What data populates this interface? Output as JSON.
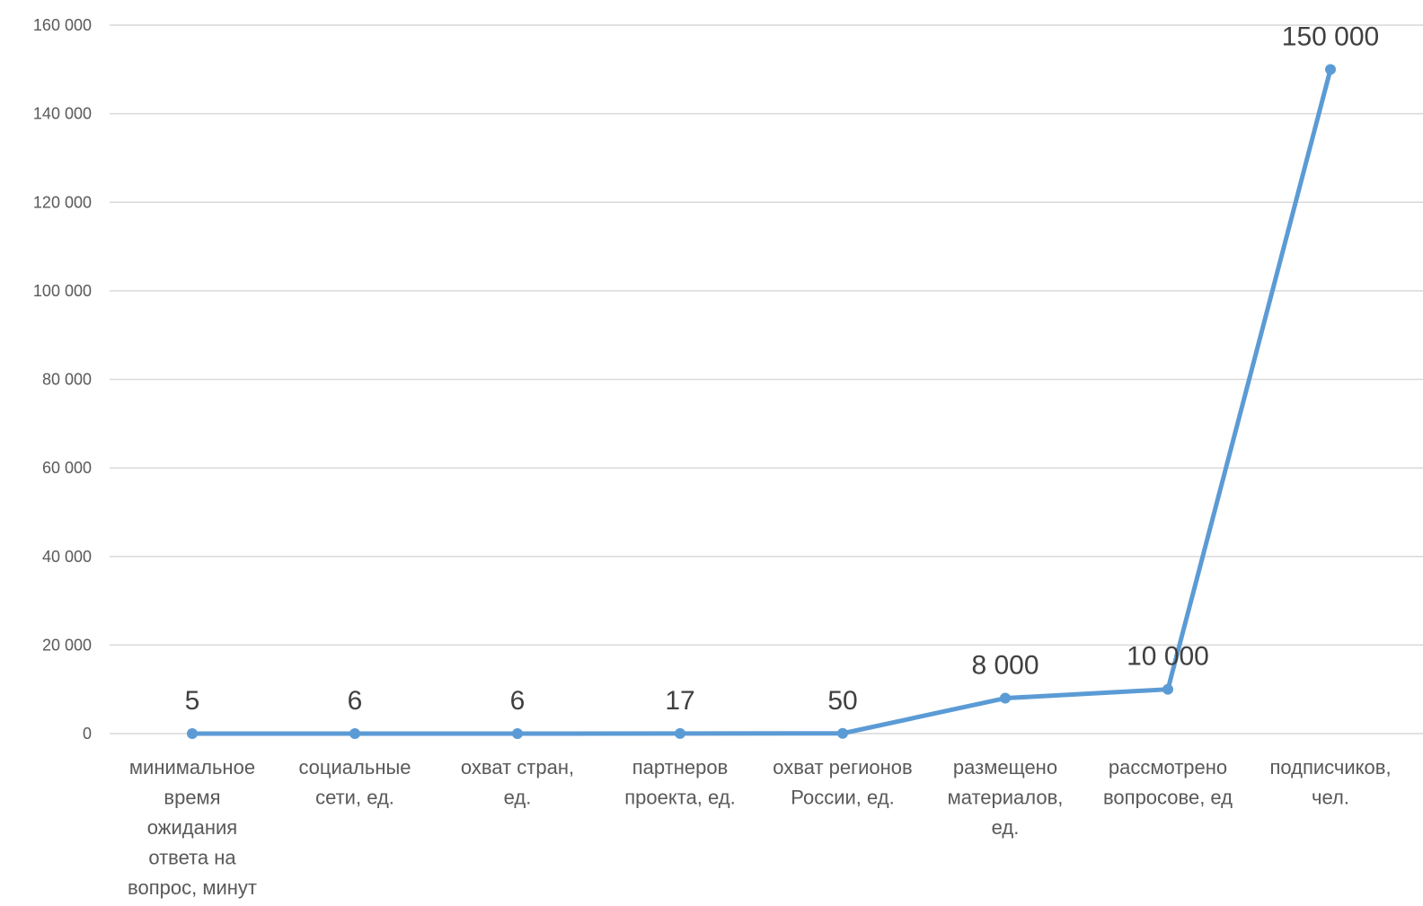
{
  "chart_data": {
    "type": "line",
    "title": "",
    "xlabel": "",
    "ylabel": "",
    "ylim": [
      0,
      160000
    ],
    "ytick_values": [
      0,
      20000,
      40000,
      60000,
      80000,
      100000,
      120000,
      140000,
      160000
    ],
    "ytick_labels": [
      "0",
      "20 000",
      "40 000",
      "60 000",
      "80 000",
      "100 000",
      "120 000",
      "140 000",
      "160 000"
    ],
    "grid": true,
    "legend": "none",
    "categories": [
      [
        "минимальное",
        "время",
        "ожидания",
        "ответа на",
        "вопрос, минут"
      ],
      [
        "социальные",
        "сети, ед."
      ],
      [
        "охват стран,",
        "ед."
      ],
      [
        "партнеров",
        "проекта, ед."
      ],
      [
        "охват регионов",
        "России, ед."
      ],
      [
        "размещено",
        "материалов,",
        "ед."
      ],
      [
        "рассмотрено",
        "вопросове, ед"
      ],
      [
        "подписчиков,",
        "чел."
      ]
    ],
    "values": [
      5,
      6,
      6,
      17,
      50,
      8000,
      10000,
      150000
    ],
    "data_labels": [
      "5",
      "6",
      "6",
      "17",
      "50",
      "8 000",
      "10 000",
      "150 000"
    ],
    "color": "#5b9bd5"
  }
}
